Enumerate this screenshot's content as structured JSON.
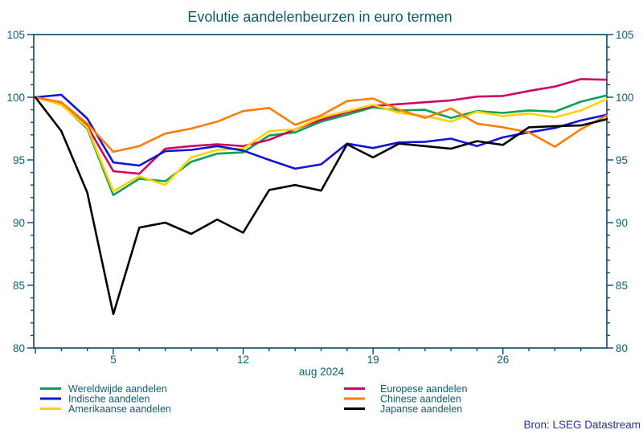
{
  "title": "Evolutie aandelenbeurzen in euro termen",
  "source": "Bron: LSEG Datastream",
  "styles": {
    "accent_teal": "#0d5f73",
    "source_color": "#2633a0",
    "axis_color": "#10465f",
    "background": "#ffffff"
  },
  "chart_data": {
    "type": "line",
    "title": "Evolutie aandelenbeurzen in euro termen",
    "xlabel": "aug 2024",
    "ylabel": "",
    "ylim": [
      80,
      105
    ],
    "y_ticks_major": [
      80,
      85,
      90,
      95,
      100,
      105
    ],
    "y_minor_step": 1,
    "grid": "off",
    "axis_sides": [
      "left",
      "right"
    ],
    "x_axis": {
      "label": "aug 2024",
      "dates": [
        "jul 31",
        "aug 1",
        "aug 2",
        "aug 5",
        "aug 6",
        "aug 7",
        "aug 8",
        "aug 9",
        "aug 12",
        "aug 13",
        "aug 14",
        "aug 15",
        "aug 16",
        "aug 19",
        "aug 20",
        "aug 21",
        "aug 22",
        "aug 23",
        "aug 26",
        "aug 27",
        "aug 28",
        "aug 29",
        "aug 30"
      ],
      "major_ticks": [
        {
          "label": "5",
          "index": 3
        },
        {
          "label": "12",
          "index": 8
        },
        {
          "label": "19",
          "index": 13
        },
        {
          "label": "26",
          "index": 18
        }
      ],
      "month_tick_index": 0
    },
    "series": [
      {
        "name": "Wereldwijde aandelen",
        "color": "#0fa058",
        "values": [
          100,
          99.45,
          97.5,
          92.2,
          93.5,
          93.3,
          94.85,
          95.5,
          95.6,
          96.95,
          97.2,
          98.05,
          98.6,
          99.2,
          98.95,
          99.0,
          98.35,
          98.9,
          98.75,
          98.95,
          98.85,
          99.65,
          100.15
        ]
      },
      {
        "name": "Indische aandelen",
        "color": "#1414d2",
        "values": [
          100,
          100.2,
          98.3,
          94.8,
          94.55,
          95.7,
          95.8,
          96.1,
          95.75,
          95.0,
          94.3,
          94.65,
          96.3,
          95.95,
          96.4,
          96.45,
          96.7,
          96.1,
          96.8,
          97.2,
          97.55,
          98.15,
          98.6
        ]
      },
      {
        "name": "Amerikaanse aandelen",
        "color": "#ffd200",
        "values": [
          100,
          99.4,
          97.6,
          92.5,
          93.7,
          93.0,
          95.2,
          95.8,
          95.9,
          97.3,
          97.45,
          98.4,
          98.9,
          99.4,
          98.75,
          98.5,
          98.05,
          98.85,
          98.5,
          98.7,
          98.4,
          98.95,
          99.85
        ]
      },
      {
        "name": "Europese aandelen",
        "color": "#ce0665",
        "values": [
          100,
          99.5,
          97.7,
          94.1,
          93.9,
          95.9,
          96.1,
          96.25,
          96.1,
          96.6,
          97.45,
          98.2,
          98.8,
          99.3,
          99.45,
          99.6,
          99.75,
          100.05,
          100.1,
          100.5,
          100.85,
          101.45,
          101.4
        ]
      },
      {
        "name": "Chinese aandelen",
        "color": "#ff7d00",
        "values": [
          100,
          99.6,
          97.9,
          95.65,
          96.1,
          97.1,
          97.5,
          98.05,
          98.9,
          99.15,
          97.8,
          98.55,
          99.7,
          99.9,
          99.0,
          98.35,
          99.1,
          97.9,
          97.6,
          97.2,
          96.05,
          97.45,
          98.55
        ]
      },
      {
        "name": "Japanse aandelen",
        "color": "#000000",
        "values": [
          100,
          97.3,
          92.4,
          82.7,
          89.6,
          90.0,
          89.1,
          90.25,
          89.2,
          92.6,
          93.0,
          92.55,
          96.25,
          95.2,
          96.3,
          96.1,
          95.9,
          96.5,
          96.2,
          97.6,
          97.7,
          97.75,
          98.25
        ]
      }
    ],
    "legend": {
      "position": "bottom",
      "columns": [
        [
          0,
          1,
          2
        ],
        [
          3,
          4,
          5
        ]
      ]
    }
  }
}
